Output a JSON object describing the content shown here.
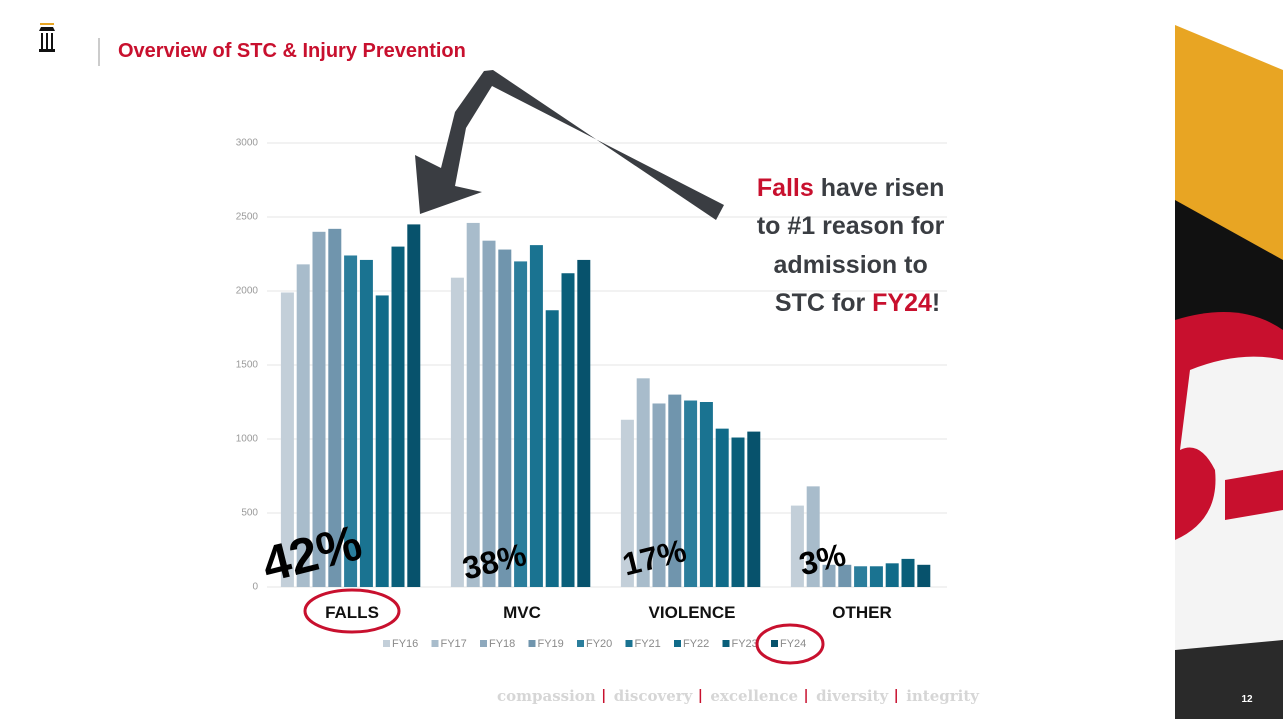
{
  "slide": {
    "title": "Overview of STC & Injury Prevention",
    "callout": [
      "Falls",
      " have risen",
      "to #1 reason for",
      "admission to",
      "STC for ",
      "FY24",
      "!"
    ],
    "values_words": [
      "compassion",
      "discovery",
      "excellence",
      "diversity",
      "integrity"
    ],
    "page_number": "12"
  },
  "chart_data": {
    "type": "bar",
    "categories": [
      "FALLS",
      "MVC",
      "VIOLENCE",
      "OTHER"
    ],
    "annotations": [
      "42%",
      "38%",
      "17%",
      "3%"
    ],
    "ylim": [
      0,
      3000
    ],
    "yticks": [
      0,
      500,
      1000,
      1500,
      2000,
      2500,
      3000
    ],
    "grid": true,
    "series": [
      {
        "name": "FY16",
        "color": "#c3cfd9",
        "values": [
          1990,
          2090,
          1130,
          550
        ]
      },
      {
        "name": "FY17",
        "color": "#a8bccb",
        "values": [
          2180,
          2460,
          1410,
          680
        ]
      },
      {
        "name": "FY18",
        "color": "#8ea9bd",
        "values": [
          2400,
          2340,
          1240,
          150
        ]
      },
      {
        "name": "FY19",
        "color": "#7095ad",
        "values": [
          2420,
          2280,
          1300,
          150
        ]
      },
      {
        "name": "FY20",
        "color": "#2b7e9c",
        "values": [
          2240,
          2200,
          1260,
          140
        ]
      },
      {
        "name": "FY21",
        "color": "#1a7391",
        "values": [
          2210,
          2310,
          1250,
          140
        ]
      },
      {
        "name": "FY22",
        "color": "#106b89",
        "values": [
          1970,
          1870,
          1070,
          160
        ]
      },
      {
        "name": "FY23",
        "color": "#0a5f7a",
        "values": [
          2300,
          2120,
          1010,
          190
        ]
      },
      {
        "name": "FY24",
        "color": "#07526c",
        "values": [
          2450,
          2210,
          1050,
          150
        ]
      }
    ]
  }
}
